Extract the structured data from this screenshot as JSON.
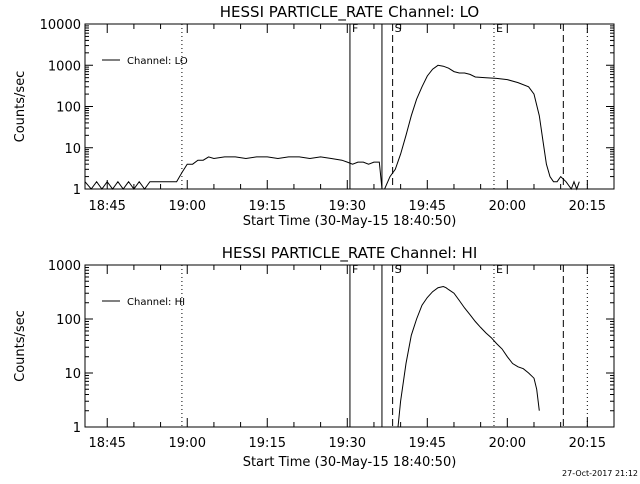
{
  "footer": {
    "timestamp": "27-Oct-2017 21:12"
  },
  "chart_data": [
    {
      "type": "line",
      "title": "HESSI PARTICLE_RATE Channel: LO",
      "xlabel": "Start Time (30-May-15 18:40:50)",
      "ylabel": "Counts/sec",
      "yscale": "log",
      "xlim": [
        "18:40:50",
        "20:20:00"
      ],
      "ylim": [
        1,
        10000
      ],
      "xticks": [
        "18:45",
        "19:00",
        "19:15",
        "19:30",
        "19:45",
        "20:00",
        "20:15"
      ],
      "yticks": [
        "1",
        "10",
        "100",
        "1000",
        "10000"
      ],
      "legend": {
        "position": "top-left",
        "entries": [
          "Channel: LO"
        ]
      },
      "vlines": [
        {
          "time": "18:59:00",
          "style": "dotted"
        },
        {
          "time": "19:30:30",
          "style": "solid",
          "label": "F"
        },
        {
          "time": "19:36:30",
          "style": "solid"
        },
        {
          "time": "19:38:30",
          "style": "dashed",
          "label": "S"
        },
        {
          "time": "19:57:30",
          "style": "dotted",
          "label": "E"
        },
        {
          "time": "20:10:30",
          "style": "dashed"
        },
        {
          "time": "20:15:00",
          "style": "dotted"
        }
      ],
      "series": [
        {
          "name": "Channel: LO",
          "x": [
            "18:40:50",
            "18:42:00",
            "18:43:00",
            "18:44:00",
            "18:45:00",
            "18:46:00",
            "18:47:00",
            "18:48:00",
            "18:49:00",
            "18:50:00",
            "18:51:00",
            "18:52:00",
            "18:53:00",
            "18:54:00",
            "18:55:00",
            "18:56:00",
            "18:57:00",
            "18:58:00",
            "18:59:00",
            "19:00:00",
            "19:01:00",
            "19:02:00",
            "19:03:00",
            "19:04:00",
            "19:05:00",
            "19:07:00",
            "19:09:00",
            "19:11:00",
            "19:13:00",
            "19:15:00",
            "19:17:00",
            "19:19:00",
            "19:21:00",
            "19:23:00",
            "19:25:00",
            "19:27:00",
            "19:29:00",
            "19:30:00",
            "19:31:00",
            "19:32:00",
            "19:33:00",
            "19:34:00",
            "19:35:00",
            "19:36:00",
            "19:36:30",
            "19:37:00",
            "19:38:00",
            "19:39:00",
            "19:40:00",
            "19:41:00",
            "19:42:00",
            "19:43:00",
            "19:44:00",
            "19:45:00",
            "19:46:00",
            "19:47:00",
            "19:48:00",
            "19:49:00",
            "19:50:00",
            "19:51:00",
            "19:52:00",
            "19:53:00",
            "19:54:00",
            "19:56:00",
            "19:58:00",
            "20:00:00",
            "20:02:00",
            "20:04:00",
            "20:05:00",
            "20:06:00",
            "20:06:40",
            "20:07:20",
            "20:08:00",
            "20:08:40",
            "20:09:20",
            "20:10:00",
            "20:11:00",
            "20:12:00",
            "20:12:30",
            "20:13:00",
            "20:13:30"
          ],
          "y": [
            1.5,
            1,
            1.5,
            1,
            1.5,
            1,
            1.5,
            1,
            1.5,
            1,
            1.5,
            1,
            1.5,
            1.5,
            1.5,
            1.5,
            1.5,
            1.5,
            2.5,
            4,
            4,
            5,
            5,
            6,
            5.5,
            6,
            6,
            5.5,
            6,
            6,
            5.5,
            6,
            6,
            5.5,
            6,
            5.5,
            5,
            4.5,
            4,
            4.5,
            4.5,
            4,
            4.5,
            4.5,
            1,
            1,
            2,
            3,
            7,
            20,
            60,
            150,
            300,
            550,
            800,
            1000,
            950,
            850,
            700,
            650,
            650,
            600,
            520,
            500,
            480,
            450,
            380,
            300,
            200,
            60,
            15,
            4,
            2,
            1.5,
            1.5,
            2,
            1.5,
            1,
            1.5,
            1,
            1.5
          ]
        }
      ]
    },
    {
      "type": "line",
      "title": "HESSI PARTICLE_RATE Channel: HI",
      "xlabel": "Start Time (30-May-15 18:40:50)",
      "ylabel": "Counts/sec",
      "yscale": "log",
      "xlim": [
        "18:40:50",
        "20:20:00"
      ],
      "ylim": [
        1,
        1000
      ],
      "xticks": [
        "18:45",
        "19:00",
        "19:15",
        "19:30",
        "19:45",
        "20:00",
        "20:15"
      ],
      "yticks": [
        "1",
        "10",
        "100",
        "1000"
      ],
      "legend": {
        "position": "top-left",
        "entries": [
          "Channel: HI"
        ]
      },
      "vlines": [
        {
          "time": "18:59:00",
          "style": "dotted"
        },
        {
          "time": "19:30:30",
          "style": "solid",
          "label": "F"
        },
        {
          "time": "19:36:30",
          "style": "solid"
        },
        {
          "time": "19:38:30",
          "style": "dashed",
          "label": "S"
        },
        {
          "time": "19:57:30",
          "style": "dotted",
          "label": "E"
        },
        {
          "time": "20:10:30",
          "style": "dashed"
        },
        {
          "time": "20:15:00",
          "style": "dotted"
        }
      ],
      "series": [
        {
          "name": "Channel: HI",
          "x": [
            "19:39:30",
            "19:40:00",
            "19:41:00",
            "19:42:00",
            "19:43:00",
            "19:44:00",
            "19:45:00",
            "19:46:00",
            "19:47:00",
            "19:48:00",
            "19:48:30",
            "19:49:00",
            "19:50:00",
            "19:51:00",
            "19:52:00",
            "19:53:00",
            "19:54:00",
            "19:55:00",
            "19:56:00",
            "19:57:00",
            "19:58:00",
            "19:59:00",
            "20:00:00",
            "20:01:00",
            "20:02:00",
            "20:03:00",
            "20:04:00",
            "20:05:00",
            "20:05:30",
            "20:06:00"
          ],
          "y": [
            1,
            3,
            15,
            50,
            100,
            180,
            250,
            320,
            380,
            400,
            380,
            350,
            300,
            220,
            160,
            120,
            90,
            70,
            55,
            45,
            35,
            28,
            20,
            15,
            13,
            12,
            10,
            8,
            5,
            2
          ]
        }
      ]
    }
  ]
}
